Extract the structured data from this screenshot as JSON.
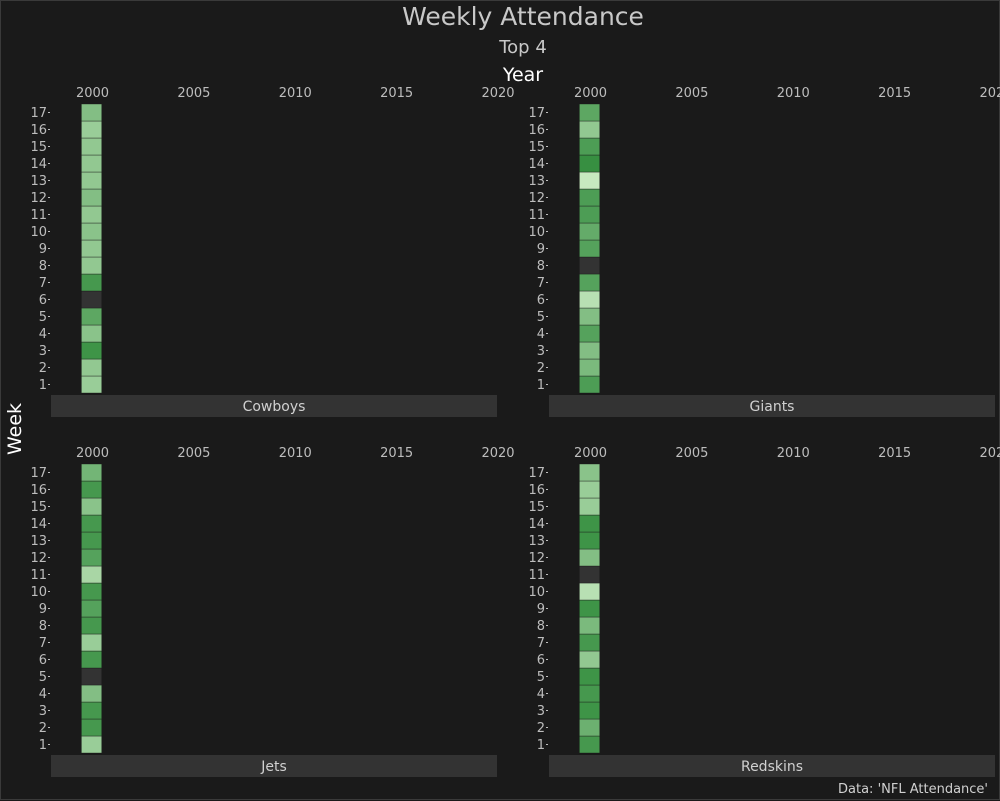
{
  "chart_data": {
    "type": "heatmap",
    "title": "Weekly Attendance",
    "subtitle": "Top 4",
    "xlabel": "Year",
    "ylabel": "Week",
    "caption": "Data: 'NFL Attendance'",
    "x_ticks": [
      2000,
      2005,
      2010,
      2015,
      2020
    ],
    "xlim": [
      1998,
      2020
    ],
    "y_ticks": [
      1,
      2,
      3,
      4,
      5,
      6,
      7,
      8,
      9,
      10,
      11,
      12,
      13,
      14,
      15,
      16,
      17
    ],
    "grid": false,
    "legend": "none",
    "colors": {
      "background": "#1a1a1a",
      "strip": "#333333",
      "missing": "#333333",
      "low": "#c7e9c0",
      "high": "#2f8a3a"
    },
    "value_scale": "relative intensity 0-1 (no legend shown)",
    "panels": [
      {
        "name": "Cowboys",
        "cells": [
          {
            "year": 2000,
            "week": 1,
            "value": 0.3
          },
          {
            "year": 2000,
            "week": 2,
            "value": 0.35
          },
          {
            "year": 2000,
            "week": 3,
            "value": 0.9
          },
          {
            "year": 2000,
            "week": 4,
            "value": 0.4
          },
          {
            "year": 2000,
            "week": 5,
            "value": 0.7
          },
          {
            "year": 2000,
            "week": 6,
            "value": null
          },
          {
            "year": 2000,
            "week": 7,
            "value": 0.85
          },
          {
            "year": 2000,
            "week": 8,
            "value": 0.35
          },
          {
            "year": 2000,
            "week": 9,
            "value": 0.35
          },
          {
            "year": 2000,
            "week": 10,
            "value": 0.4
          },
          {
            "year": 2000,
            "week": 11,
            "value": 0.35
          },
          {
            "year": 2000,
            "week": 12,
            "value": 0.45
          },
          {
            "year": 2000,
            "week": 13,
            "value": 0.35
          },
          {
            "year": 2000,
            "week": 14,
            "value": 0.35
          },
          {
            "year": 2000,
            "week": 15,
            "value": 0.35
          },
          {
            "year": 2000,
            "week": 16,
            "value": 0.3
          },
          {
            "year": 2000,
            "week": 17,
            "value": 0.45
          }
        ]
      },
      {
        "name": "Giants",
        "cells": [
          {
            "year": 2000,
            "week": 1,
            "value": 0.8
          },
          {
            "year": 2000,
            "week": 2,
            "value": 0.5
          },
          {
            "year": 2000,
            "week": 3,
            "value": 0.45
          },
          {
            "year": 2000,
            "week": 4,
            "value": 0.75
          },
          {
            "year": 2000,
            "week": 5,
            "value": 0.45
          },
          {
            "year": 2000,
            "week": 6,
            "value": 0.1
          },
          {
            "year": 2000,
            "week": 7,
            "value": 0.75
          },
          {
            "year": 2000,
            "week": 8,
            "value": null
          },
          {
            "year": 2000,
            "week": 9,
            "value": 0.75
          },
          {
            "year": 2000,
            "week": 10,
            "value": 0.65
          },
          {
            "year": 2000,
            "week": 11,
            "value": 0.8
          },
          {
            "year": 2000,
            "week": 12,
            "value": 0.8
          },
          {
            "year": 2000,
            "week": 13,
            "value": 0.0
          },
          {
            "year": 2000,
            "week": 14,
            "value": 0.95
          },
          {
            "year": 2000,
            "week": 15,
            "value": 0.8
          },
          {
            "year": 2000,
            "week": 16,
            "value": 0.35
          },
          {
            "year": 2000,
            "week": 17,
            "value": 0.7
          }
        ]
      },
      {
        "name": "Jets",
        "cells": [
          {
            "year": 2000,
            "week": 1,
            "value": 0.3
          },
          {
            "year": 2000,
            "week": 2,
            "value": 0.85
          },
          {
            "year": 2000,
            "week": 3,
            "value": 0.85
          },
          {
            "year": 2000,
            "week": 4,
            "value": 0.45
          },
          {
            "year": 2000,
            "week": 5,
            "value": null
          },
          {
            "year": 2000,
            "week": 6,
            "value": 0.85
          },
          {
            "year": 2000,
            "week": 7,
            "value": 0.3
          },
          {
            "year": 2000,
            "week": 8,
            "value": 0.85
          },
          {
            "year": 2000,
            "week": 9,
            "value": 0.75
          },
          {
            "year": 2000,
            "week": 10,
            "value": 0.85
          },
          {
            "year": 2000,
            "week": 11,
            "value": 0.2
          },
          {
            "year": 2000,
            "week": 12,
            "value": 0.75
          },
          {
            "year": 2000,
            "week": 13,
            "value": 0.85
          },
          {
            "year": 2000,
            "week": 14,
            "value": 0.85
          },
          {
            "year": 2000,
            "week": 15,
            "value": 0.4
          },
          {
            "year": 2000,
            "week": 16,
            "value": 0.85
          },
          {
            "year": 2000,
            "week": 17,
            "value": 0.55
          }
        ]
      },
      {
        "name": "Redskins",
        "cells": [
          {
            "year": 2000,
            "week": 1,
            "value": 0.85
          },
          {
            "year": 2000,
            "week": 2,
            "value": 0.6
          },
          {
            "year": 2000,
            "week": 3,
            "value": 0.9
          },
          {
            "year": 2000,
            "week": 4,
            "value": 0.85
          },
          {
            "year": 2000,
            "week": 5,
            "value": 0.9
          },
          {
            "year": 2000,
            "week": 6,
            "value": 0.35
          },
          {
            "year": 2000,
            "week": 7,
            "value": 0.85
          },
          {
            "year": 2000,
            "week": 8,
            "value": 0.5
          },
          {
            "year": 2000,
            "week": 9,
            "value": 0.9
          },
          {
            "year": 2000,
            "week": 10,
            "value": 0.1
          },
          {
            "year": 2000,
            "week": 11,
            "value": null
          },
          {
            "year": 2000,
            "week": 12,
            "value": 0.45
          },
          {
            "year": 2000,
            "week": 13,
            "value": 0.9
          },
          {
            "year": 2000,
            "week": 14,
            "value": 0.9
          },
          {
            "year": 2000,
            "week": 15,
            "value": 0.3
          },
          {
            "year": 2000,
            "week": 16,
            "value": 0.3
          },
          {
            "year": 2000,
            "week": 17,
            "value": 0.4
          }
        ]
      }
    ]
  }
}
